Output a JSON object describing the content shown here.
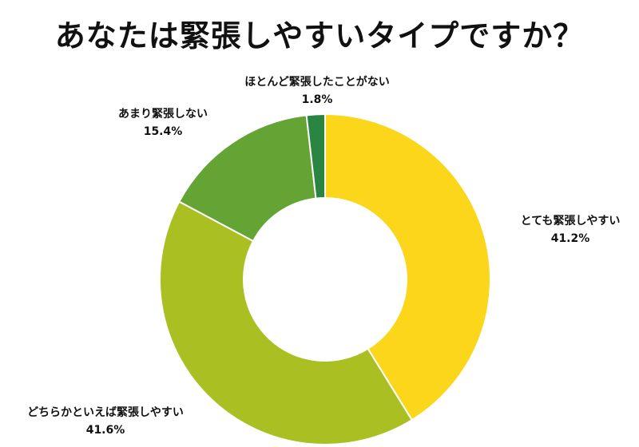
{
  "chart_data": {
    "type": "pie",
    "title": "あなたは緊張しやすいタイプですか？",
    "donut": true,
    "slices": [
      {
        "label": "とても緊張しやすい",
        "value": 41.2,
        "value_label": "41.2%",
        "color": "#fbd61a"
      },
      {
        "label": "どちらかといえば緊張しやすい",
        "value": 41.6,
        "value_label": "41.6%",
        "color": "#aabf22"
      },
      {
        "label": "あまり緊張しない",
        "value": 15.4,
        "value_label": "15.4%",
        "color": "#64a435"
      },
      {
        "label": "ほとんど緊張したことがない",
        "value": 1.8,
        "value_label": "1.8%",
        "color": "#2a8540"
      }
    ],
    "legend": "none",
    "grid": false
  }
}
